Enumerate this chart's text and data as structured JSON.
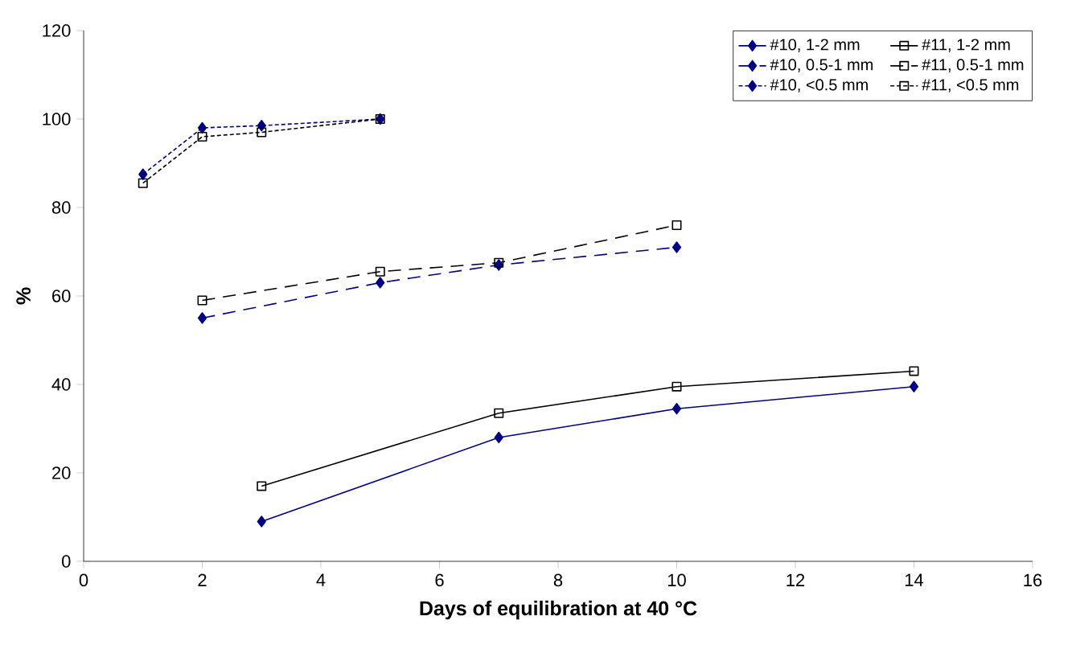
{
  "chart_data": {
    "type": "line",
    "xlabel": "Days of equilibration at 40 °C",
    "ylabel": "%",
    "xlim": [
      0,
      16
    ],
    "xticks": [
      0,
      2,
      4,
      6,
      8,
      10,
      12,
      14,
      16
    ],
    "ylim": [
      0,
      120
    ],
    "yticks": [
      0,
      20,
      40,
      60,
      80,
      100,
      120
    ],
    "grid": false,
    "legend": "top right",
    "series": [
      {
        "name": "#10, 1-2 mm",
        "color": "#000080",
        "marker": "diamond",
        "line_style": "solid",
        "x": [
          3,
          7,
          10,
          14
        ],
        "values": [
          9,
          28,
          34.5,
          39.5
        ]
      },
      {
        "name": "#11, 1-2 mm",
        "color": "#000000",
        "marker": "square",
        "line_style": "solid",
        "x": [
          3,
          7,
          10,
          14
        ],
        "values": [
          17,
          33.5,
          39.5,
          43
        ]
      },
      {
        "name": "#10, 0.5-1 mm",
        "color": "#000080",
        "marker": "diamond",
        "line_style": "dashed",
        "x": [
          2,
          5,
          7,
          10
        ],
        "values": [
          55,
          63,
          67,
          71
        ]
      },
      {
        "name": "#11, 0.5-1 mm",
        "color": "#000000",
        "marker": "square",
        "line_style": "dashed",
        "x": [
          2,
          5,
          7,
          10
        ],
        "values": [
          59,
          65.5,
          67.5,
          76
        ]
      },
      {
        "name": "#10, <0.5 mm",
        "color": "#000080",
        "marker": "diamond",
        "line_style": "dotted",
        "x": [
          1,
          2,
          3,
          5
        ],
        "values": [
          87.5,
          98,
          98.5,
          100
        ]
      },
      {
        "name": "#11, <0.5 mm",
        "color": "#000000",
        "marker": "square",
        "line_style": "dotted",
        "x": [
          1,
          2,
          3,
          5
        ],
        "values": [
          85.5,
          96,
          97,
          100
        ]
      }
    ]
  }
}
